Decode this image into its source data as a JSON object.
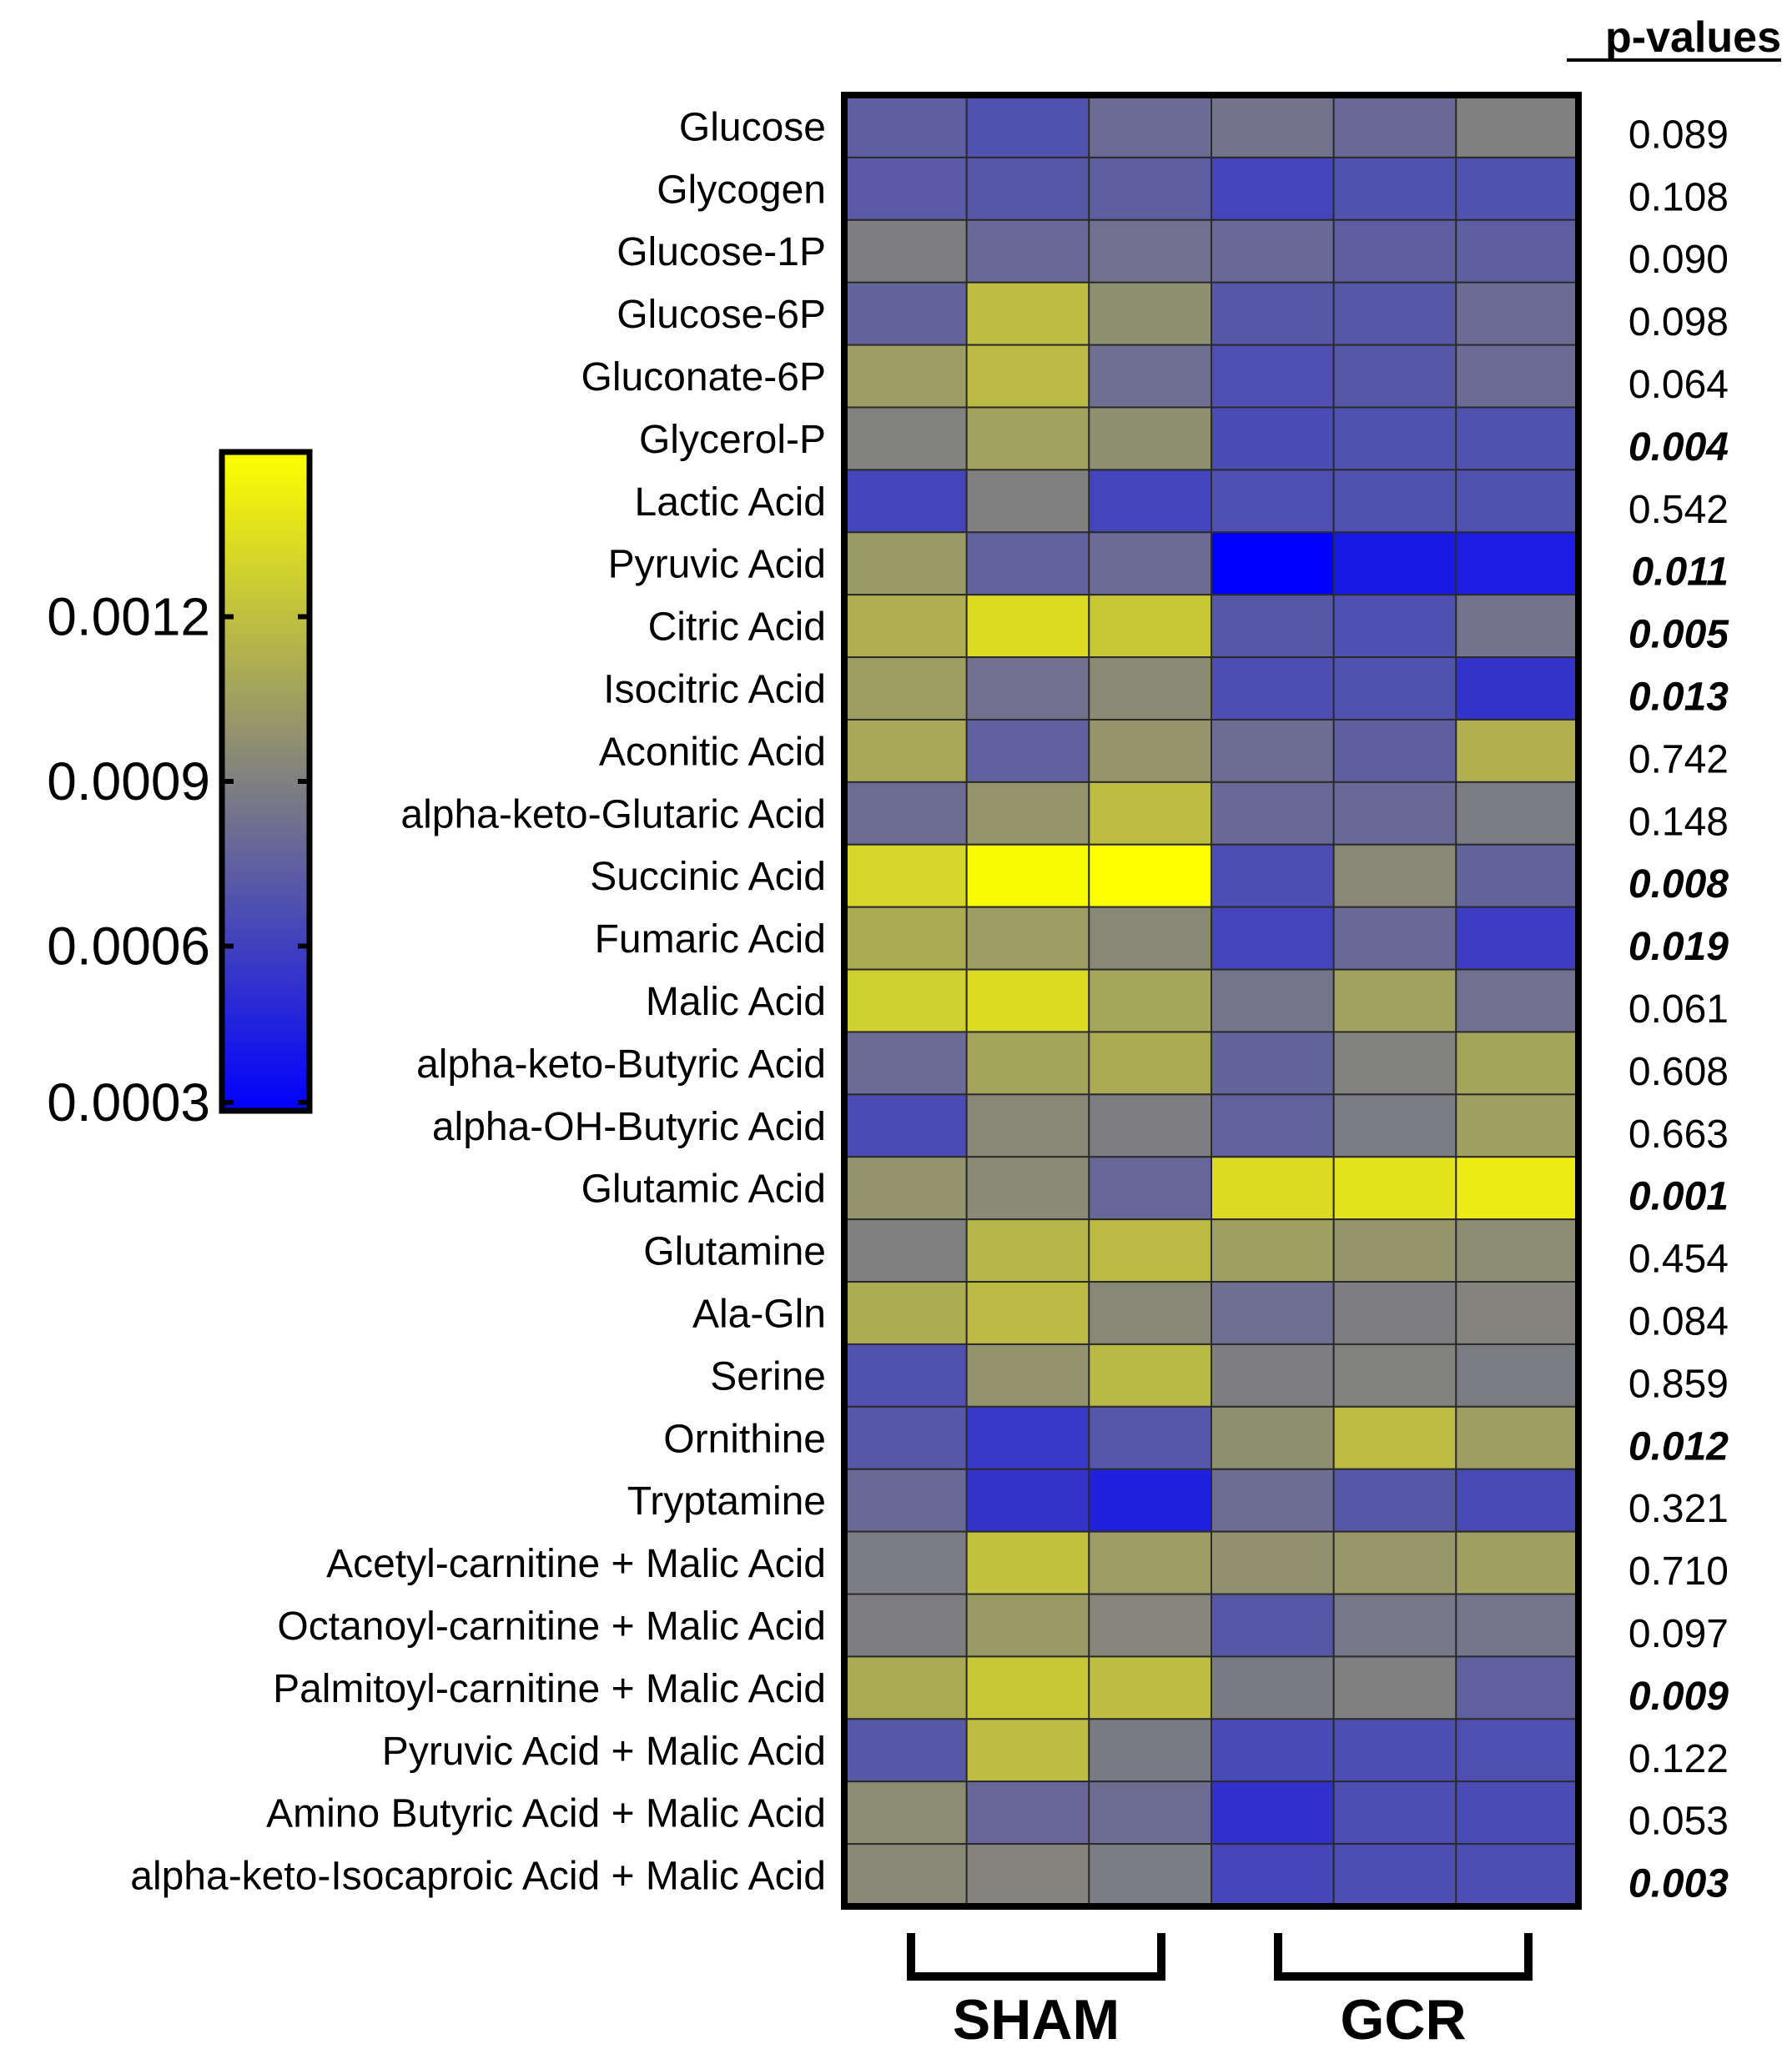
{
  "chart_data": {
    "type": "heatmap",
    "title": "",
    "pvalues_header": "p-values",
    "groups": [
      {
        "label": "SHAM",
        "columns": 3
      },
      {
        "label": "GCR",
        "columns": 3
      }
    ],
    "colorbar": {
      "ticks": [
        "0.0012",
        "0.0009",
        "0.0006",
        "0.0003"
      ],
      "tick_values": [
        0.0012,
        0.0009,
        0.0006,
        0.0003
      ],
      "range": [
        0.0003,
        0.0015
      ],
      "colors": [
        "#0000ff",
        "#808080",
        "#ffff00"
      ]
    },
    "rows": [
      "Glucose",
      "Glycogen",
      "Glucose-1P",
      "Glucose-6P",
      "Gluconate-6P",
      "Glycerol-P",
      "Lactic Acid",
      "Pyruvic Acid",
      "Citric Acid",
      "Isocitric Acid",
      "Aconitic Acid",
      "alpha-keto-Glutaric Acid",
      "Succinic Acid",
      "Fumaric Acid",
      "Malic Acid",
      "alpha-keto-Butyric Acid",
      "alpha-OH-Butyric Acid",
      "Glutamic Acid",
      "Glutamine",
      "Ala-Gln",
      "Serine",
      "Ornithine",
      "Tryptamine",
      "Acetyl-carnitine + Malic Acid",
      "Octanoyl-carnitine + Malic Acid",
      "Palmitoyl-carnitine + Malic Acid",
      "Pyruvic Acid + Malic Acid",
      "Amino Butyric Acid + Malic Acid",
      "alpha-keto-Isocaproic Acid + Malic Acid"
    ],
    "values": [
      [
        0.00074,
        0.00068,
        0.0008,
        0.00084,
        0.00079,
        0.0009
      ],
      [
        0.00072,
        0.00071,
        0.00074,
        0.00062,
        0.00068,
        0.00068
      ],
      [
        0.00089,
        0.00079,
        0.00083,
        0.00079,
        0.00074,
        0.00074
      ],
      [
        0.00077,
        0.00119,
        0.00097,
        0.00071,
        0.00071,
        0.0008
      ],
      [
        0.00103,
        0.00118,
        0.00082,
        0.00067,
        0.00071,
        0.0008
      ],
      [
        0.00091,
        0.00106,
        0.00097,
        0.00065,
        0.00068,
        0.00068
      ],
      [
        0.00062,
        0.0009,
        0.00062,
        0.00067,
        0.00068,
        0.00068
      ],
      [
        0.00102,
        0.00076,
        0.0008,
        0.0003,
        0.00042,
        0.00043
      ],
      [
        0.00112,
        0.00133,
        0.00124,
        0.00071,
        0.00067,
        0.00084
      ],
      [
        0.00104,
        0.00083,
        0.00095,
        0.00066,
        0.00068,
        0.00054
      ],
      [
        0.00109,
        0.00075,
        0.001,
        0.00081,
        0.00074,
        0.00113
      ],
      [
        0.00081,
        0.001,
        0.00119,
        0.00079,
        0.00079,
        0.00088
      ],
      [
        0.0013,
        0.00148,
        0.0015,
        0.00066,
        0.00094,
        0.00077
      ],
      [
        0.0011,
        0.00103,
        0.00094,
        0.00062,
        0.00079,
        0.00058
      ],
      [
        0.00128,
        0.00133,
        0.00108,
        0.00085,
        0.00106,
        0.00083
      ],
      [
        0.0008,
        0.00107,
        0.0011,
        0.00077,
        0.00091,
        0.00107
      ],
      [
        0.00065,
        0.00094,
        0.00089,
        0.00076,
        0.00088,
        0.00105
      ],
      [
        0.00099,
        0.00095,
        0.00078,
        0.00133,
        0.00137,
        0.00141
      ],
      [
        0.0009,
        0.00116,
        0.00118,
        0.00105,
        0.001,
        0.00096
      ],
      [
        0.00111,
        0.00118,
        0.00094,
        0.00082,
        0.00089,
        0.00092
      ],
      [
        0.00068,
        0.00099,
        0.00117,
        0.00089,
        0.00091,
        0.00088
      ],
      [
        0.00071,
        0.00056,
        0.0007,
        0.00097,
        0.00119,
        0.00104
      ],
      [
        0.00079,
        0.00054,
        0.00045,
        0.00081,
        0.00071,
        0.00064
      ],
      [
        0.00088,
        0.00121,
        0.00103,
        0.00098,
        0.00101,
        0.00105
      ],
      [
        0.00089,
        0.00102,
        0.00093,
        0.00071,
        0.00086,
        0.00085
      ],
      [
        0.0011,
        0.00124,
        0.00119,
        0.00087,
        0.0009,
        0.00075
      ],
      [
        0.00071,
        0.00119,
        0.00087,
        0.00064,
        0.00066,
        0.00067
      ],
      [
        0.00096,
        0.00078,
        0.00081,
        0.00053,
        0.00066,
        0.00065
      ],
      [
        0.00094,
        0.00092,
        0.00088,
        0.00063,
        0.00066,
        0.00066
      ]
    ],
    "pvalues": [
      {
        "text": "0.089",
        "significant": false
      },
      {
        "text": "0.108",
        "significant": false
      },
      {
        "text": "0.090",
        "significant": false
      },
      {
        "text": "0.098",
        "significant": false
      },
      {
        "text": "0.064",
        "significant": false
      },
      {
        "text": "0.004",
        "significant": true
      },
      {
        "text": "0.542",
        "significant": false
      },
      {
        "text": "0.011",
        "significant": true
      },
      {
        "text": "0.005",
        "significant": true
      },
      {
        "text": "0.013",
        "significant": true
      },
      {
        "text": "0.742",
        "significant": false
      },
      {
        "text": "0.148",
        "significant": false
      },
      {
        "text": "0.008",
        "significant": true
      },
      {
        "text": "0.019",
        "significant": true
      },
      {
        "text": "0.061",
        "significant": false
      },
      {
        "text": "0.608",
        "significant": false
      },
      {
        "text": "0.663",
        "significant": false
      },
      {
        "text": "0.001",
        "significant": true
      },
      {
        "text": "0.454",
        "significant": false
      },
      {
        "text": "0.084",
        "significant": false
      },
      {
        "text": "0.859",
        "significant": false
      },
      {
        "text": "0.012",
        "significant": true
      },
      {
        "text": "0.321",
        "significant": false
      },
      {
        "text": "0.710",
        "significant": false
      },
      {
        "text": "0.097",
        "significant": false
      },
      {
        "text": "0.009",
        "significant": true
      },
      {
        "text": "0.122",
        "significant": false
      },
      {
        "text": "0.053",
        "significant": false
      },
      {
        "text": "0.003",
        "significant": true
      }
    ]
  }
}
